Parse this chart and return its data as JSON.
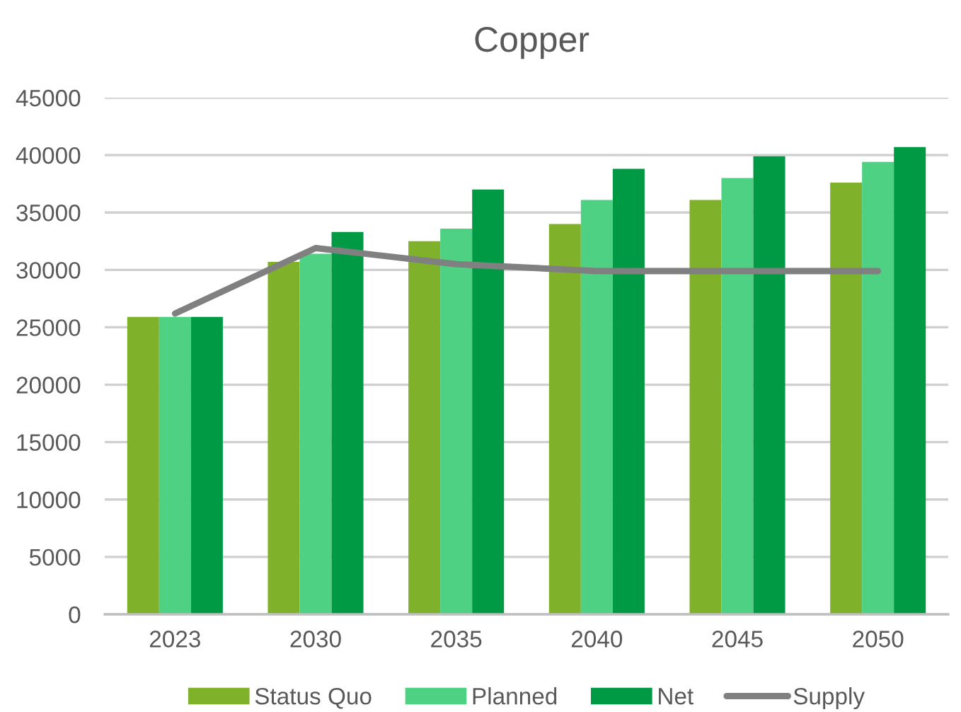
{
  "chart_data": {
    "type": "bar",
    "title": "Copper",
    "categories": [
      "2023",
      "2030",
      "2035",
      "2040",
      "2045",
      "2050"
    ],
    "series": [
      {
        "name": "Status Quo",
        "color": "#80b12a",
        "values": [
          25900,
          30700,
          32500,
          34000,
          36100,
          37600
        ]
      },
      {
        "name": "Planned",
        "color": "#4fd183",
        "values": [
          25900,
          31400,
          33600,
          36100,
          38000,
          39400
        ]
      },
      {
        "name": "Net",
        "color": "#009a44",
        "values": [
          25900,
          33300,
          37000,
          38800,
          39900,
          40700
        ]
      },
      {
        "name": "Supply",
        "color": "#808080",
        "type": "line",
        "values": [
          26200,
          31900,
          30500,
          29900,
          29900,
          29900
        ]
      }
    ],
    "ylim": [
      0,
      45000
    ],
    "yticks": [
      0,
      5000,
      10000,
      15000,
      20000,
      25000,
      30000,
      35000,
      40000,
      45000
    ],
    "grid": "y",
    "legend": "bottom",
    "marker": "none",
    "line_style": "solid"
  }
}
